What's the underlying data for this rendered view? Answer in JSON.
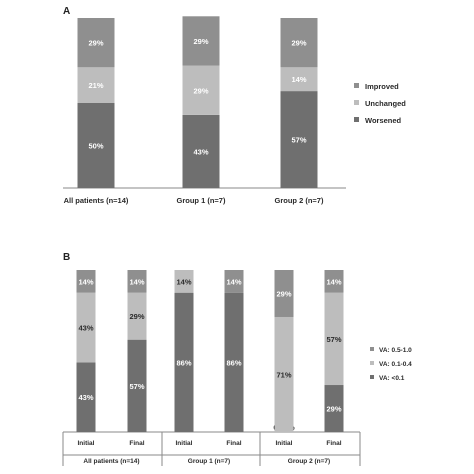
{
  "colors": {
    "worsened": "#6f6f6f",
    "unchanged": "#bdbdbd",
    "improved": "#8f8f8f",
    "va_low": "#6f6f6f",
    "va_mid": "#bdbdbd",
    "va_high": "#8f8f8f"
  },
  "chart_data": [
    {
      "panel": "A",
      "type": "bar",
      "stacked": true,
      "percent": true,
      "categories": [
        "All patients (n=14)",
        "Group 1 (n=7)",
        "Group 2 (n=7)"
      ],
      "series": [
        {
          "name": "Worsened",
          "color_key": "worsened",
          "values": [
            50,
            43,
            57
          ],
          "labels": [
            "50%",
            "43%",
            "57%"
          ]
        },
        {
          "name": "Unchanged",
          "color_key": "unchanged",
          "values": [
            21,
            29,
            14
          ],
          "labels": [
            "21%",
            "29%",
            "14%"
          ]
        },
        {
          "name": "Improved",
          "color_key": "improved",
          "values": [
            29,
            29,
            29
          ],
          "labels": [
            "29%",
            "29%",
            "29%"
          ]
        }
      ],
      "legend_order": [
        "Improved",
        "Unchanged",
        "Worsened"
      ],
      "legend_position": "right",
      "ylim": [
        0,
        100
      ],
      "grid": false
    },
    {
      "panel": "B",
      "type": "bar",
      "stacked": true,
      "percent": true,
      "groups": [
        {
          "label": "All patients (n=14)",
          "bars": [
            "Initial",
            "Final"
          ]
        },
        {
          "label": "Group 1 (n=7)",
          "bars": [
            "Initial",
            "Final"
          ]
        },
        {
          "label": "Group 2 (n=7)",
          "bars": [
            "Initial",
            "Final"
          ]
        }
      ],
      "series": [
        {
          "name": "VA: <0.1",
          "color_key": "va_low",
          "values": [
            43,
            57,
            86,
            86,
            0,
            29
          ],
          "labels": [
            "43%",
            "57%",
            "86%",
            "86%",
            "0.00%",
            "29%"
          ]
        },
        {
          "name": "VA: 0.1-0.4",
          "color_key": "va_mid",
          "values": [
            43,
            29,
            14,
            0,
            71,
            57
          ],
          "labels": [
            "43%",
            "29%",
            "14%",
            "",
            "71%",
            "57%"
          ]
        },
        {
          "name": "VA: 0.5-1.0",
          "color_key": "va_high",
          "values": [
            14,
            14,
            0,
            14,
            29,
            14
          ],
          "labels": [
            "14%",
            "14%",
            "",
            "14%",
            "29%",
            "14%"
          ]
        }
      ],
      "legend_order": [
        "VA: 0.5-1.0",
        "VA: 0.1-0.4",
        "VA: <0.1"
      ],
      "legend_position": "right",
      "ylim": [
        0,
        100
      ],
      "grid": false
    }
  ]
}
